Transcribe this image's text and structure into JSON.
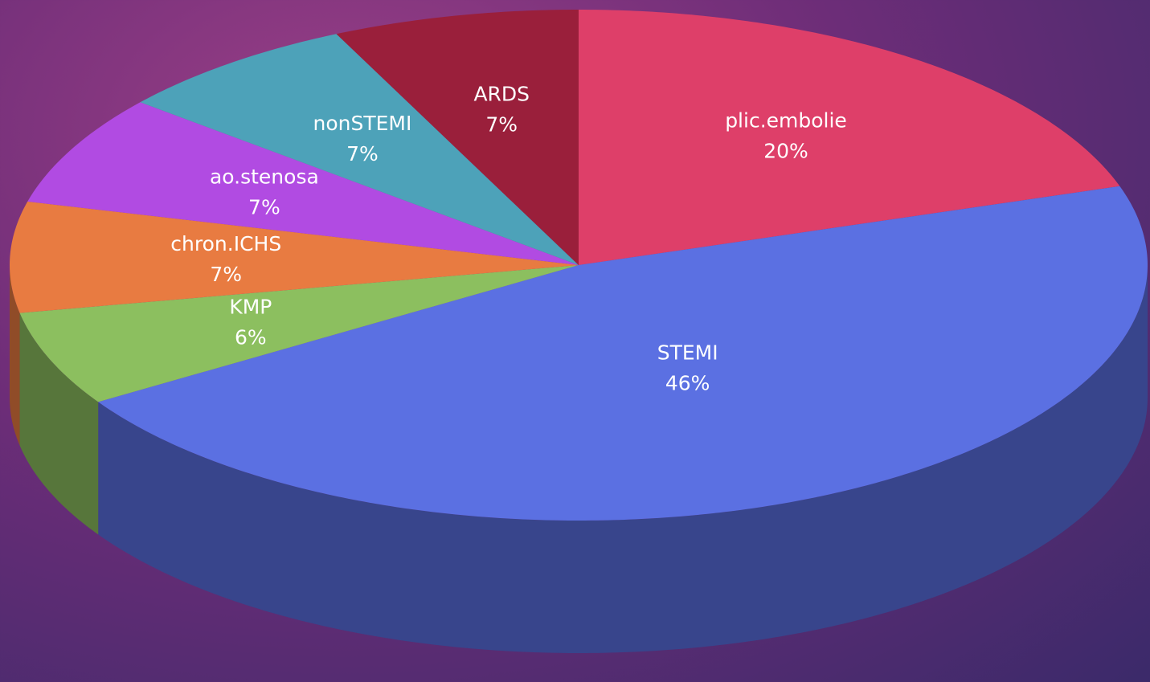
{
  "chart_data": {
    "type": "pie",
    "categories": [
      "plic.embolie",
      "STEMI",
      "KMP",
      "chron.ICHS",
      "ao.stenosa",
      "nonSTEMI",
      "ARDS"
    ],
    "values": [
      20,
      46,
      6,
      7,
      7,
      7,
      7
    ],
    "value_labels": [
      "20%",
      "46%",
      "6%",
      "7%",
      "7%",
      "7%",
      "7%"
    ],
    "colors": [
      "#de3f69",
      "#5b70e2",
      "#8cbf5f",
      "#e87b41",
      "#b14be2",
      "#4da2b9",
      "#9a1f3b"
    ]
  }
}
